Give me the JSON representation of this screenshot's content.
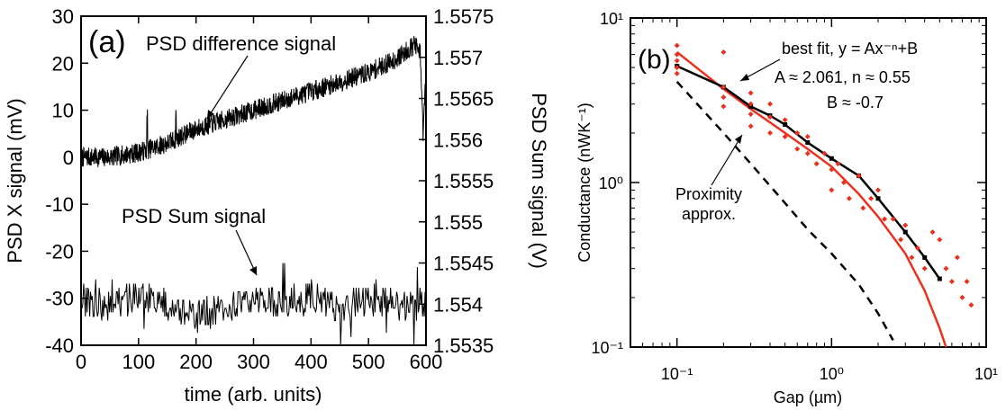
{
  "chart_data": [
    {
      "type": "line",
      "panel_label": "(a)",
      "xlabel": "time (arb. units)",
      "ylabel_left": "PSD X signal (mV)",
      "ylabel_right": "PSD Sum signal (V)",
      "xlim": [
        0,
        600
      ],
      "ylim_left": [
        -40,
        30
      ],
      "ylim_right": [
        1.5535,
        1.5575
      ],
      "x_ticks": [
        "0",
        "100",
        "200",
        "300",
        "400",
        "500",
        "600"
      ],
      "y_ticks_left": [
        "30",
        "20",
        "10",
        "0",
        "-10",
        "-20",
        "-30",
        "-40"
      ],
      "y_ticks_right": [
        "1.5575",
        "1.557",
        "1.5565",
        "1.556",
        "1.5555",
        "1.555",
        "1.5545",
        "1.554",
        "1.5535"
      ],
      "annotations": [
        "PSD difference signal",
        "PSD Sum signal"
      ],
      "series": [
        {
          "name": "PSD difference signal",
          "axis": "left",
          "x": [
            0,
            50,
            100,
            150,
            200,
            250,
            300,
            350,
            400,
            450,
            500,
            550,
            580,
            590,
            595,
            600
          ],
          "values": [
            0,
            0,
            1,
            3,
            6,
            8,
            10,
            12,
            14,
            16,
            18,
            21,
            24,
            22,
            5,
            18
          ]
        },
        {
          "name": "PSD Sum signal",
          "axis": "right",
          "x": [
            0,
            50,
            100,
            150,
            200,
            250,
            300,
            350,
            400,
            450,
            500,
            550,
            590,
            600
          ],
          "values": [
            1.55405,
            1.55395,
            1.5541,
            1.554,
            1.55385,
            1.55395,
            1.55405,
            1.554,
            1.5541,
            1.55395,
            1.55405,
            1.554,
            1.55395,
            1.554
          ]
        }
      ]
    },
    {
      "type": "scatter",
      "panel_label": "(b)",
      "xlabel": "Gap (µm)",
      "ylabel": "Conductance (nWK⁻¹)",
      "xscale": "log",
      "yscale": "log",
      "xlim": [
        0.05,
        10
      ],
      "ylim": [
        0.1,
        10
      ],
      "x_ticks": [
        "10⁻¹",
        "10⁰",
        "10¹"
      ],
      "y_ticks": [
        "10¹",
        "10⁰",
        "10⁻¹"
      ],
      "annotations": [
        "best fit, y = Ax⁻ⁿ+B",
        "A ≈ 2.061, n ≈ 0.55",
        "B ≈ -0.7",
        "Proximity",
        "approx."
      ],
      "colors": {
        "data": "#e8321e",
        "fit": "#e8321e",
        "measured_curve": "#000000",
        "proximity": "#000000"
      },
      "series": [
        {
          "name": "measured",
          "style": "black solid with markers",
          "x": [
            0.1,
            0.2,
            0.3,
            0.4,
            0.5,
            0.7,
            1.0,
            1.5,
            2.0,
            3.0,
            4.0,
            5.0
          ],
          "values": [
            5.1,
            3.8,
            2.9,
            2.55,
            2.25,
            1.75,
            1.4,
            1.1,
            0.8,
            0.5,
            0.35,
            0.26
          ]
        },
        {
          "name": "best fit",
          "style": "red solid",
          "x": [
            0.1,
            0.2,
            0.3,
            0.5,
            0.7,
            1.0,
            1.5,
            2.0,
            3.0,
            4.0,
            5.0,
            5.5
          ],
          "values": [
            6.2,
            3.7,
            2.8,
            2.0,
            1.6,
            1.25,
            0.85,
            0.62,
            0.37,
            0.22,
            0.13,
            0.1
          ]
        },
        {
          "name": "Proximity approx.",
          "style": "black dashed",
          "x": [
            0.1,
            0.2,
            0.3,
            0.5,
            0.7,
            1.0,
            1.5,
            2.0,
            2.5
          ],
          "values": [
            4.1,
            2.0,
            1.3,
            0.75,
            0.52,
            0.37,
            0.24,
            0.16,
            0.11
          ]
        },
        {
          "name": "data points",
          "style": "red scatter",
          "x": [
            0.1,
            0.1,
            0.1,
            0.1,
            0.1,
            0.2,
            0.2,
            0.2,
            0.2,
            0.3,
            0.3,
            0.3,
            0.3,
            0.4,
            0.4,
            0.4,
            0.5,
            0.5,
            0.6,
            0.6,
            0.7,
            0.7,
            0.8,
            0.9,
            1.0,
            1.0,
            1.1,
            1.2,
            1.3,
            1.5,
            1.6,
            1.8,
            2.0,
            2.2,
            2.5,
            2.8,
            3.0,
            3.3,
            3.6,
            4.0,
            4.5,
            5.0,
            5.5,
            6.0,
            6.5,
            7.0,
            7.5,
            8.0
          ],
          "values": [
            6.8,
            6.0,
            5.5,
            5.0,
            4.6,
            6.2,
            3.8,
            3.3,
            2.9,
            3.5,
            3.0,
            2.6,
            2.2,
            3.0,
            2.5,
            2.0,
            2.4,
            1.9,
            2.0,
            1.6,
            1.9,
            1.5,
            1.3,
            1.5,
            1.2,
            0.9,
            1.3,
            1.0,
            0.8,
            1.1,
            0.7,
            0.8,
            0.9,
            0.6,
            0.6,
            0.45,
            0.55,
            0.35,
            0.4,
            0.3,
            0.5,
            0.45,
            0.3,
            0.25,
            0.35,
            0.2,
            0.25,
            0.18
          ]
        }
      ]
    }
  ]
}
